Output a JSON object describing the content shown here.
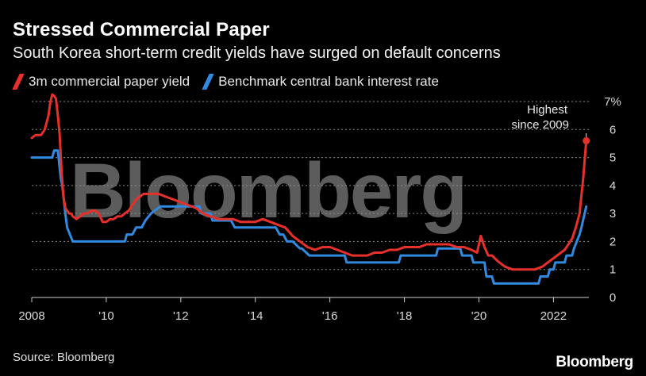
{
  "chart_data": {
    "type": "line",
    "title": "Stressed Commercial Paper",
    "subtitle": "South Korea short-term credit yields have surged on default concerns",
    "ylabel": "%",
    "ylim": [
      0,
      7
    ],
    "y_ticks": [
      "0",
      "1",
      "2",
      "3",
      "4",
      "5",
      "6",
      "7%"
    ],
    "xlim": [
      2008,
      2022.95
    ],
    "x_ticks": [
      {
        "value": 2008,
        "label": "2008"
      },
      {
        "value": 2010,
        "label": "'10"
      },
      {
        "value": 2012,
        "label": "'12"
      },
      {
        "value": 2014,
        "label": "'14"
      },
      {
        "value": 2016,
        "label": "'16"
      },
      {
        "value": 2018,
        "label": "'18"
      },
      {
        "value": 2020,
        "label": "'20"
      },
      {
        "value": 2022,
        "label": "2022"
      }
    ],
    "series": [
      {
        "name": "3m commercial paper yield",
        "color": "#e8302a",
        "x": [
          2008.0,
          2008.1,
          2008.25,
          2008.35,
          2008.45,
          2008.5,
          2008.55,
          2008.6,
          2008.65,
          2008.7,
          2008.75,
          2008.8,
          2008.85,
          2008.9,
          2008.95,
          2009.0,
          2009.05,
          2009.1,
          2009.2,
          2009.3,
          2009.4,
          2009.5,
          2009.6,
          2009.7,
          2009.8,
          2009.9,
          2010.0,
          2010.1,
          2010.2,
          2010.3,
          2010.4,
          2010.5,
          2010.6,
          2010.7,
          2010.8,
          2010.9,
          2011.0,
          2011.2,
          2011.4,
          2011.6,
          2011.8,
          2012.0,
          2012.2,
          2012.4,
          2012.6,
          2012.8,
          2013.0,
          2013.2,
          2013.4,
          2013.6,
          2013.8,
          2014.0,
          2014.2,
          2014.4,
          2014.6,
          2014.8,
          2015.0,
          2015.2,
          2015.4,
          2015.6,
          2015.8,
          2016.0,
          2016.2,
          2016.4,
          2016.6,
          2016.8,
          2017.0,
          2017.2,
          2017.4,
          2017.6,
          2017.8,
          2018.0,
          2018.2,
          2018.4,
          2018.6,
          2018.8,
          2019.0,
          2019.2,
          2019.4,
          2019.6,
          2019.8,
          2019.95,
          2020.05,
          2020.15,
          2020.25,
          2020.35,
          2020.5,
          2020.7,
          2020.9,
          2021.1,
          2021.3,
          2021.5,
          2021.7,
          2021.9,
          2022.1,
          2022.3,
          2022.5,
          2022.6,
          2022.7,
          2022.8,
          2022.88
        ],
        "values": [
          5.7,
          5.8,
          5.8,
          6.0,
          6.5,
          7.0,
          7.25,
          7.2,
          7.1,
          6.5,
          5.8,
          4.5,
          3.6,
          3.2,
          3.1,
          3.0,
          3.0,
          2.9,
          2.8,
          2.9,
          3.0,
          3.0,
          3.1,
          3.1,
          3.0,
          2.7,
          2.7,
          2.8,
          2.8,
          2.9,
          2.9,
          3.0,
          3.1,
          3.3,
          3.5,
          3.6,
          3.7,
          3.7,
          3.7,
          3.6,
          3.5,
          3.4,
          3.3,
          3.2,
          3.0,
          2.9,
          2.8,
          2.8,
          2.8,
          2.7,
          2.7,
          2.7,
          2.8,
          2.7,
          2.6,
          2.5,
          2.2,
          2.0,
          1.8,
          1.7,
          1.8,
          1.8,
          1.7,
          1.6,
          1.5,
          1.5,
          1.5,
          1.6,
          1.6,
          1.7,
          1.7,
          1.8,
          1.8,
          1.8,
          1.9,
          1.9,
          1.9,
          1.9,
          1.8,
          1.8,
          1.7,
          1.6,
          2.2,
          1.8,
          1.5,
          1.5,
          1.3,
          1.1,
          1.0,
          1.0,
          1.0,
          1.0,
          1.1,
          1.3,
          1.5,
          1.7,
          2.1,
          2.5,
          3.0,
          4.3,
          5.6
        ]
      },
      {
        "name": "Benchmark central bank interest rate",
        "color": "#2f8ae0",
        "x": [
          2008.0,
          2008.55,
          2008.6,
          2008.7,
          2008.78,
          2008.82,
          2008.9,
          2008.95,
          2009.1,
          2009.5,
          2010.0,
          2010.5,
          2010.55,
          2010.7,
          2010.8,
          2010.95,
          2011.05,
          2011.2,
          2011.45,
          2011.6,
          2012.0,
          2012.5,
          2012.55,
          2012.8,
          2012.85,
          2013.0,
          2013.35,
          2013.45,
          2014.0,
          2014.55,
          2014.65,
          2014.75,
          2014.85,
          2015.0,
          2015.2,
          2015.25,
          2015.45,
          2015.5,
          2016.0,
          2016.4,
          2016.45,
          2017.0,
          2017.85,
          2017.9,
          2018.5,
          2018.85,
          2018.9,
          2019.5,
          2019.55,
          2019.8,
          2019.85,
          2020.15,
          2020.2,
          2020.35,
          2020.4,
          2021.0,
          2021.6,
          2021.65,
          2021.85,
          2021.9,
          2022.0,
          2022.05,
          2022.3,
          2022.35,
          2022.5,
          2022.55,
          2022.7,
          2022.75,
          2022.88
        ],
        "values": [
          5.0,
          5.0,
          5.25,
          5.25,
          4.25,
          4.0,
          3.0,
          2.5,
          2.0,
          2.0,
          2.0,
          2.0,
          2.25,
          2.25,
          2.5,
          2.5,
          2.75,
          3.0,
          3.25,
          3.25,
          3.25,
          3.25,
          3.0,
          3.0,
          2.75,
          2.75,
          2.75,
          2.5,
          2.5,
          2.5,
          2.25,
          2.25,
          2.0,
          2.0,
          1.75,
          1.75,
          1.5,
          1.5,
          1.5,
          1.5,
          1.25,
          1.25,
          1.25,
          1.5,
          1.5,
          1.5,
          1.75,
          1.75,
          1.5,
          1.5,
          1.25,
          1.25,
          0.75,
          0.75,
          0.5,
          0.5,
          0.5,
          0.75,
          0.75,
          1.0,
          1.0,
          1.25,
          1.25,
          1.5,
          1.5,
          1.75,
          2.25,
          2.5,
          3.25
        ]
      }
    ],
    "annotation": {
      "line1": "Highest",
      "line2": "since 2009"
    }
  },
  "source": "Source: Bloomberg",
  "brand": "Bloomberg",
  "watermark": "Bloomberg"
}
